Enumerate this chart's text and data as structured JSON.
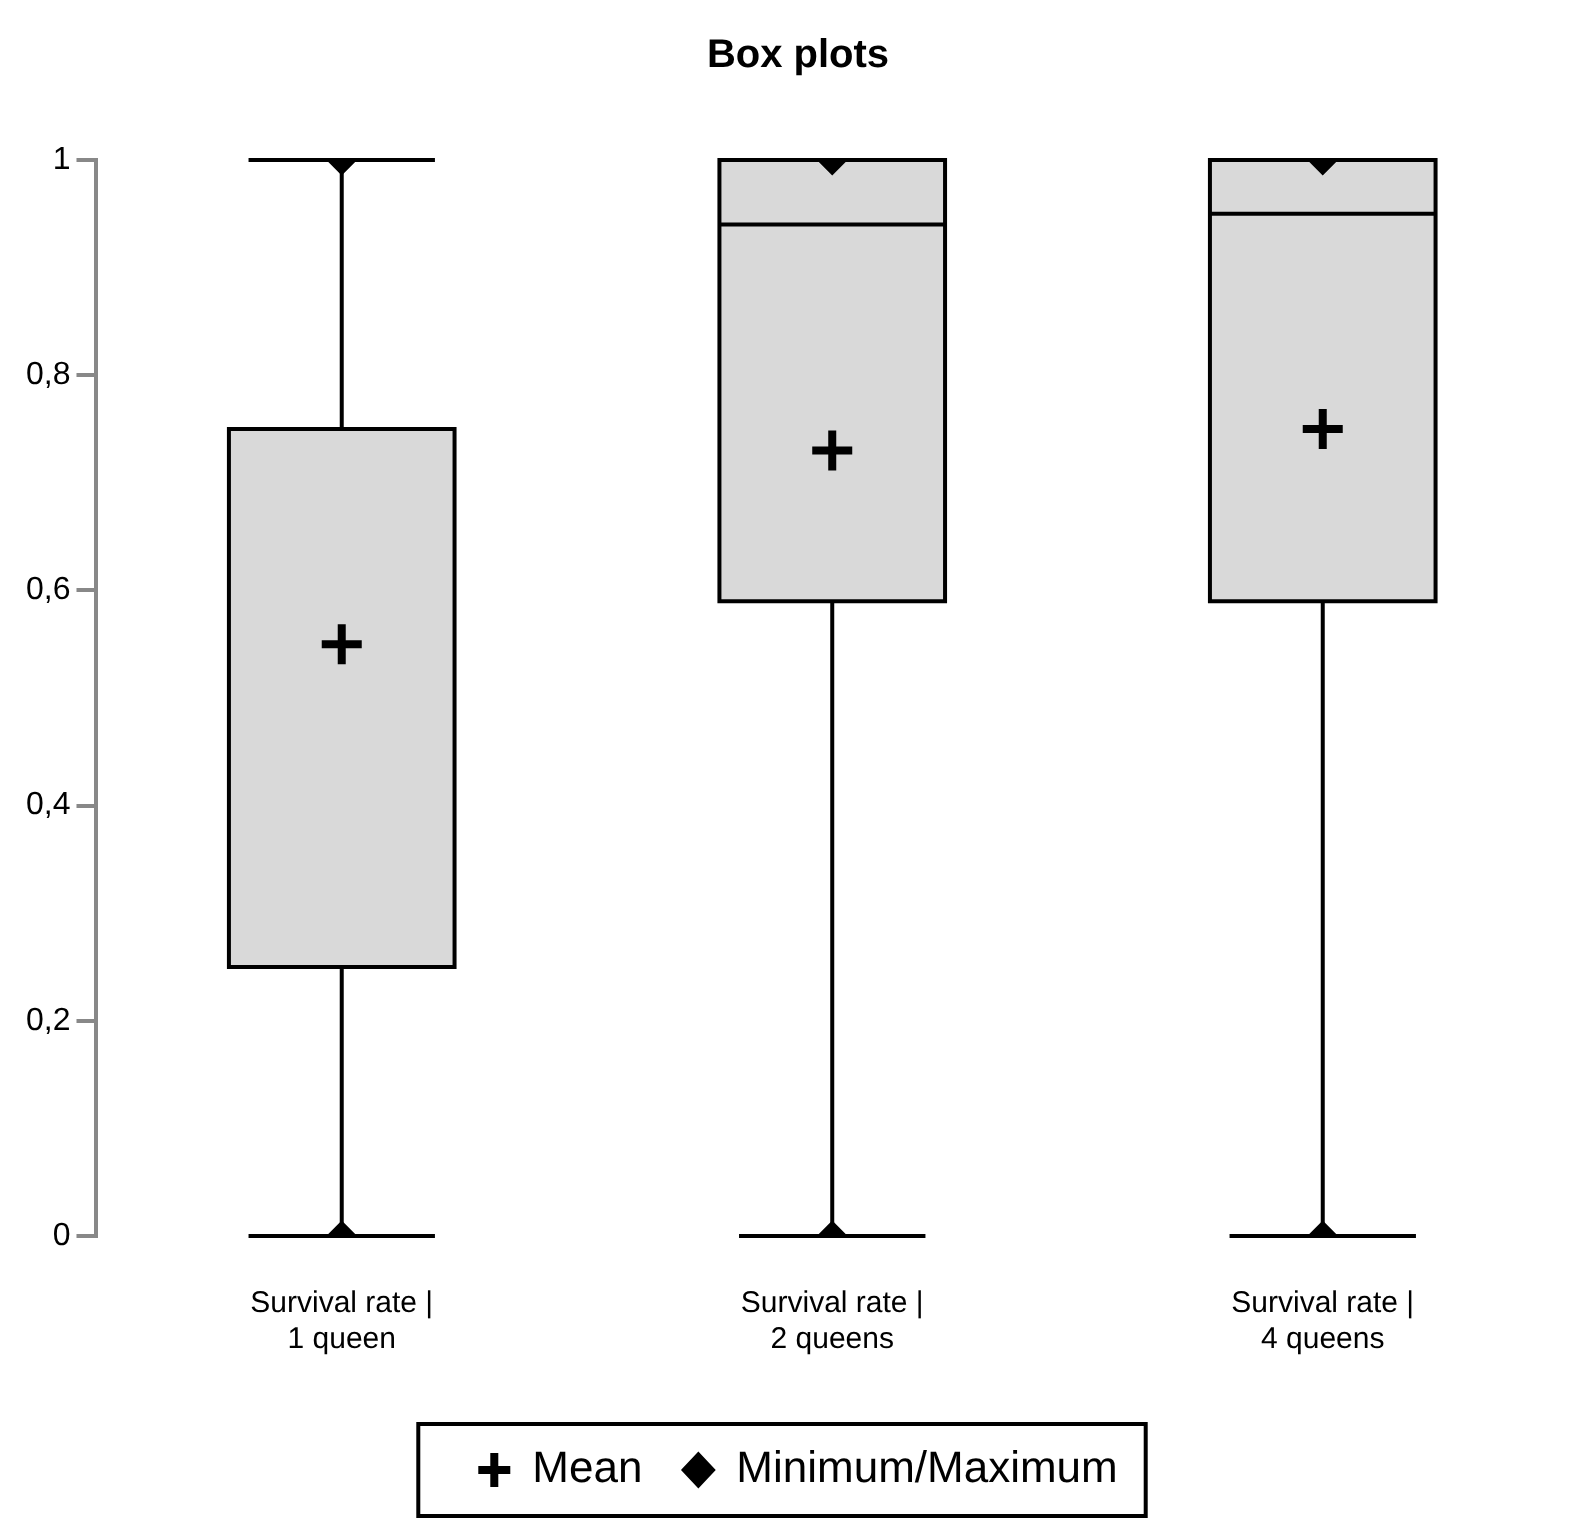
{
  "chart_data": {
    "type": "box",
    "title": "Box plots",
    "categories": [
      "Survival rate | 1 queen",
      "Survival rate | 2 queens",
      "Survival rate | 4 queens"
    ],
    "boxes": [
      {
        "low": 0,
        "q1": 0.25,
        "median": 0.75,
        "q3": 0.75,
        "high": 1
      },
      {
        "low": 0,
        "q1": 0.59,
        "median": 0.94,
        "q3": 1,
        "high": 1
      },
      {
        "low": 0,
        "q1": 0.59,
        "median": 0.95,
        "q3": 1,
        "high": 1
      }
    ],
    "color": "#d9d9d9",
    "series": [
      {
        "name": "Mean",
        "type": "scatter",
        "marker": "cross",
        "color": "#000000",
        "x": [
          "Survival rate | 1 queen",
          "Survival rate | 2 queens",
          "Survival rate | 4 queens"
        ],
        "values": [
          0.55,
          0.73,
          0.75
        ]
      },
      {
        "name": "Minimum/Maximum",
        "type": "scatter",
        "marker": "diamond",
        "color": "#000000",
        "x": [
          "Survival rate | 1 queen",
          "Survival rate | 1 queen",
          "Survival rate | 2 queens",
          "Survival rate | 2 queens",
          "Survival rate | 4 queens",
          "Survival rate | 4 queens"
        ],
        "values": [
          0,
          1,
          0,
          1,
          0,
          1
        ]
      }
    ],
    "ylim": [
      0,
      1
    ],
    "yticks": [
      {
        "value": 0,
        "label": "0"
      },
      {
        "value": 0.2,
        "label": "0,2"
      },
      {
        "value": 0.4,
        "label": "0,4"
      },
      {
        "value": 0.6,
        "label": "0,6"
      },
      {
        "value": 0.8,
        "label": "0,8"
      },
      {
        "value": 1,
        "label": "1"
      }
    ],
    "grid": false,
    "legend": "bottom"
  }
}
